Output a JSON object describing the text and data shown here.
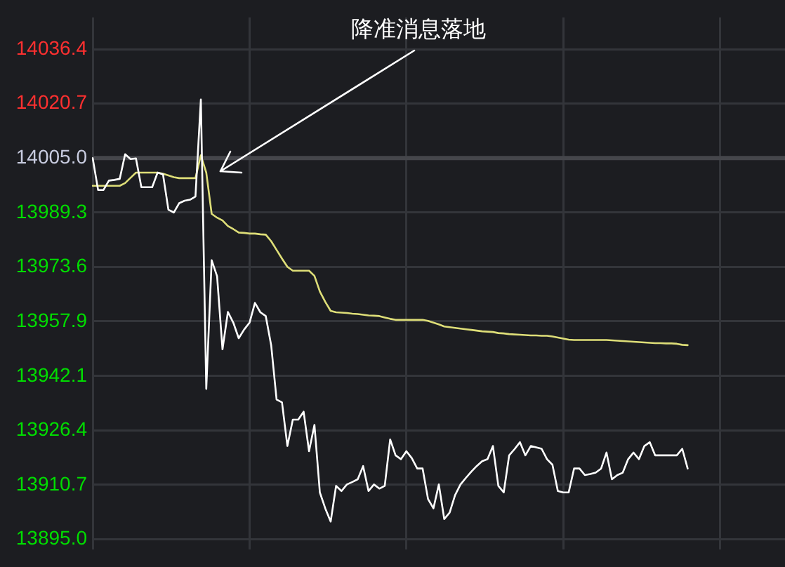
{
  "chart_data": {
    "type": "line",
    "categories": [
      null,
      null,
      null,
      null,
      null,
      null,
      null,
      null,
      null,
      null,
      null,
      null,
      null,
      null,
      null,
      null,
      null,
      null,
      null,
      null,
      null,
      null,
      null,
      null,
      null,
      null,
      null,
      null,
      null,
      null,
      null,
      null,
      null,
      null,
      null,
      null,
      null,
      null,
      null,
      null,
      null,
      null,
      null,
      null,
      null,
      null,
      null,
      null,
      null,
      null,
      null,
      null,
      null,
      null,
      null,
      null,
      null,
      null,
      null,
      null,
      null,
      null,
      null,
      null,
      null,
      null,
      null,
      null,
      null,
      null,
      null,
      null,
      null,
      null,
      null,
      null,
      null,
      null,
      null,
      null,
      null,
      null,
      null,
      null,
      null,
      null,
      null,
      null,
      null,
      null,
      null,
      null,
      null,
      null,
      null,
      null,
      null,
      null,
      null,
      null,
      null,
      null,
      null,
      null,
      null,
      null,
      null,
      null,
      null,
      null,
      null,
      null,
      null,
      null,
      null,
      null,
      null,
      null,
      null,
      null,
      null,
      null,
      null,
      null,
      null,
      null,
      null,
      null,
      null
    ],
    "ylim": [
      13892,
      14045.6
    ],
    "yticks": [
      {
        "value": 13895,
        "label": "13895.0"
      },
      13910.7,
      13926.4,
      13942.1,
      13957.9,
      13973.6,
      13989.3,
      {
        "value": 14005,
        "label": "14005.0"
      },
      14020.7,
      14036.4
    ],
    "tick_labels": "y",
    "grid": true,
    "legend": false,
    "marker": "none",
    "line_style": "solid",
    "ref_lines": [
      {
        "axis": "y",
        "value": 14005,
        "color": "#45464b"
      }
    ],
    "annotations": [
      "降准消息落地"
    ],
    "series": [
      {
        "color": "#ffffff",
        "values": [
          14005.0,
          13995.8,
          13995.8,
          13998.5,
          13998.7,
          13999.0,
          14006.1,
          14004.7,
          14004.9,
          13996.6,
          13996.6,
          13996.6,
          14000.8,
          14000.3,
          13990.1,
          13989.3,
          13992.0,
          13992.7,
          13993.0,
          13993.9,
          14021.9,
          13938.4,
          13975.5,
          13970.9,
          13949.8,
          13960.6,
          13957.5,
          13953.0,
          13955.5,
          13957.5,
          13963.2,
          13960.5,
          13959.4,
          13951.0,
          13935.3,
          13934.5,
          13921.9,
          13929.5,
          13929.5,
          13931.8,
          13920.4,
          13928.0,
          13908.5,
          13903.9,
          13900.1,
          13910.4,
          13908.9,
          13910.8,
          13911.5,
          13912.3,
          13916.1,
          13908.9,
          13910.8,
          13909.6,
          13910.4,
          13923.8,
          13919.2,
          13918.1,
          13920.4,
          13918.4,
          13915.4,
          13915.4,
          13906.6,
          13903.9,
          13910.8,
          13900.8,
          13902.7,
          13907.7,
          13910.8,
          13912.7,
          13914.5,
          13916.1,
          13917.5,
          13918.1,
          13921.9,
          13910.4,
          13908.5,
          13919.2,
          13921.0,
          13923.0,
          13919.2,
          13921.9,
          13921.5,
          13921.1,
          13918.1,
          13916.5,
          13908.9,
          13908.5,
          13908.5,
          13915.4,
          13915.4,
          13913.5,
          13913.8,
          13914.2,
          13915.4,
          13920.0,
          13912.3,
          13913.5,
          13914.2,
          13918.1,
          13920.0,
          13918.1,
          13921.9,
          13923.0,
          13919.2,
          13919.2,
          13919.2,
          13919.2,
          13919.2,
          13921.1,
          13915.4,
          null,
          null,
          null,
          null,
          null,
          null,
          null,
          null,
          null,
          null,
          null,
          null,
          null,
          null,
          null,
          null,
          null,
          null
        ]
      },
      {
        "color": "#dede78",
        "values": [
          13997.0,
          13997.0,
          13997.0,
          13997.0,
          13997.0,
          13997.0,
          13997.8,
          13999.3,
          14000.8,
          14000.8,
          14000.8,
          14000.8,
          14000.8,
          14000.5,
          14000.0,
          13999.5,
          13999.2,
          13999.2,
          13999.2,
          13999.2,
          14005.8,
          14000.8,
          13988.9,
          13987.8,
          13987.0,
          13985.4,
          13984.5,
          13983.5,
          13983.4,
          13983.2,
          13983.2,
          13983.0,
          13982.9,
          13981.0,
          13978.5,
          13976.0,
          13973.6,
          13972.5,
          13972.5,
          13972.5,
          13972.5,
          13971.0,
          13966.5,
          13963.5,
          13960.9,
          13960.5,
          13960.4,
          13960.3,
          13960.1,
          13960.0,
          13959.8,
          13959.6,
          13959.5,
          13959.4,
          13959.0,
          13958.6,
          13958.3,
          13958.3,
          13958.3,
          13958.3,
          13958.3,
          13958.3,
          13958.0,
          13957.5,
          13957.0,
          13956.4,
          13956.2,
          13956.0,
          13955.8,
          13955.6,
          13955.4,
          13955.2,
          13955.0,
          13954.9,
          13954.8,
          13954.5,
          13954.4,
          13954.2,
          13954.1,
          13954.0,
          13953.9,
          13953.8,
          13953.8,
          13953.7,
          13953.7,
          13953.5,
          13953.2,
          13952.9,
          13952.6,
          13952.5,
          13952.5,
          13952.5,
          13952.5,
          13952.5,
          13952.5,
          13952.5,
          13952.4,
          13952.3,
          13952.2,
          13952.1,
          13952.0,
          13951.9,
          13951.8,
          13951.7,
          13951.6,
          13951.6,
          13951.5,
          13951.5,
          13951.4,
          13951.1,
          13951.0,
          null,
          null,
          null,
          null,
          null,
          null,
          null,
          null,
          null,
          null,
          null,
          null,
          null,
          null,
          null,
          null,
          null,
          null
        ]
      }
    ]
  }
}
